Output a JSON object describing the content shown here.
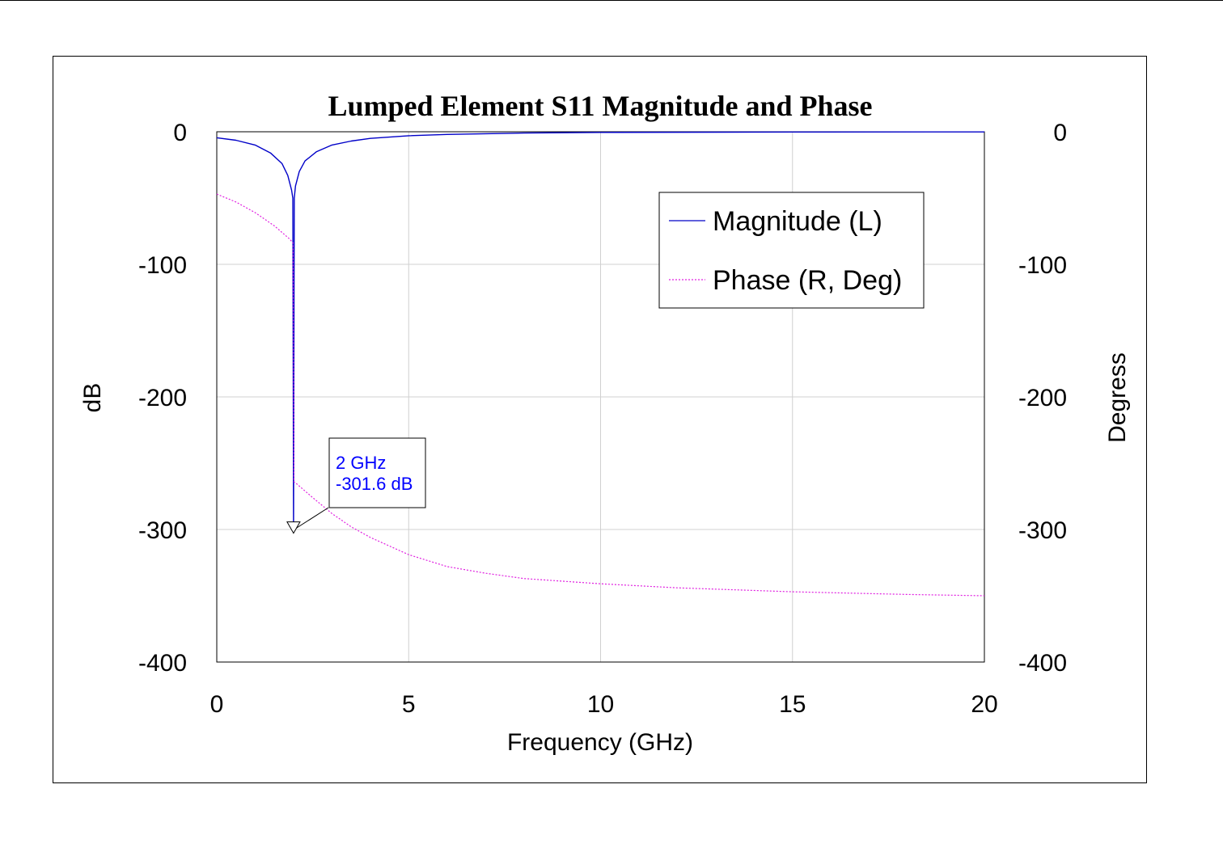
{
  "chart_data": {
    "type": "line",
    "title": "Lumped Element S11 Magnitude and Phase",
    "xlabel": "Frequency (GHz)",
    "ylabel_left": "dB",
    "ylabel_right": "Degress",
    "xlim": [
      0,
      20
    ],
    "ylim_left": [
      -400,
      0
    ],
    "ylim_right": [
      -400,
      0
    ],
    "x_ticks": [
      "0",
      "5",
      "10",
      "15",
      "20"
    ],
    "y_ticks_left": [
      "0",
      "-100",
      "-200",
      "-300",
      "-400"
    ],
    "y_ticks_right": [
      "0",
      "-100",
      "-200",
      "-300",
      "-400"
    ],
    "grid": true,
    "legend_position": "top-right",
    "colors": {
      "magnitude": "#0000c8",
      "phase": "#e020e0",
      "grid": "#d0d0d0",
      "annotation": "#0000ff"
    },
    "series": [
      {
        "name": "Magnitude (L)",
        "axis": "left",
        "style": "solid",
        "x": [
          0,
          0.5,
          1,
          1.4,
          1.7,
          1.85,
          1.95,
          1.98,
          2,
          2.02,
          2.05,
          2.15,
          2.3,
          2.6,
          3,
          3.5,
          4,
          5,
          6,
          8,
          10,
          15,
          20
        ],
        "y": [
          -4.5,
          -6.4,
          -10,
          -16,
          -24,
          -33,
          -44,
          -50,
          -301.6,
          -50,
          -41,
          -30,
          -22,
          -15,
          -10,
          -7,
          -5,
          -3,
          -2,
          -1,
          -0.5,
          -0.2,
          -0.1
        ]
      },
      {
        "name": "Phase (R, Deg)",
        "axis": "right",
        "style": "dotted",
        "x": [
          0,
          0.5,
          1,
          1.5,
          1.9,
          1.99,
          2.01,
          2.1,
          2.5,
          3,
          3.5,
          4,
          5,
          6,
          7,
          8,
          10,
          12,
          15,
          18,
          20
        ],
        "y": [
          -47,
          -53,
          -61,
          -71,
          -81,
          -84,
          -264,
          -266,
          -276,
          -288,
          -298,
          -306,
          -319,
          -328,
          -333,
          -337,
          -341,
          -344,
          -347,
          -349,
          -350
        ]
      }
    ],
    "annotations": [
      {
        "line1": "2 GHz",
        "line2": "-301.6 dB",
        "x": 2,
        "y": -301.6
      }
    ]
  }
}
